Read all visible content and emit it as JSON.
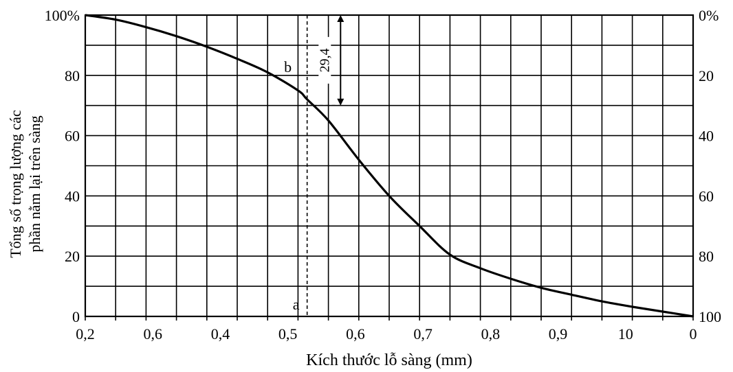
{
  "chart_data": {
    "type": "line",
    "xlabel": "Kích thước lỗ sàng (mm)",
    "ylabel_line1": "Tổng số trọng lượng các",
    "ylabel_line2": "phần nằm lại trên sàng",
    "x_tick_labels": [
      "0,2",
      "0,6",
      "0,4",
      "0,5",
      "0,6",
      "0,7",
      "0,8",
      "0,9",
      "10",
      "0"
    ],
    "x_range": [
      0,
      20
    ],
    "y_range": [
      0,
      100
    ],
    "y_tick_labels": [
      "100%",
      "80",
      "60",
      "40",
      "20",
      "0"
    ],
    "y_tick_values": [
      100,
      80,
      60,
      40,
      20,
      0
    ],
    "y2_tick_labels": [
      "0%",
      "20",
      "40",
      "60",
      "80",
      "100"
    ],
    "grid": true,
    "series": [
      {
        "x": [
          0,
          1,
          2,
          3,
          4,
          5,
          6,
          7,
          7.3,
          8,
          9,
          10,
          11,
          12,
          13,
          14,
          15,
          16,
          17,
          18,
          19,
          20
        ],
        "y": [
          100,
          98.5,
          96,
          93,
          89.5,
          85.5,
          81,
          75,
          72,
          65,
          52,
          40,
          30,
          20.5,
          16,
          12.5,
          9.5,
          7.2,
          5,
          3.2,
          1.6,
          0
        ]
      }
    ],
    "annotations": {
      "point_a_label": "a",
      "point_b_label": "b",
      "marker_x": 7.3,
      "marker_y": 70,
      "dimension_label": "29,4"
    }
  }
}
